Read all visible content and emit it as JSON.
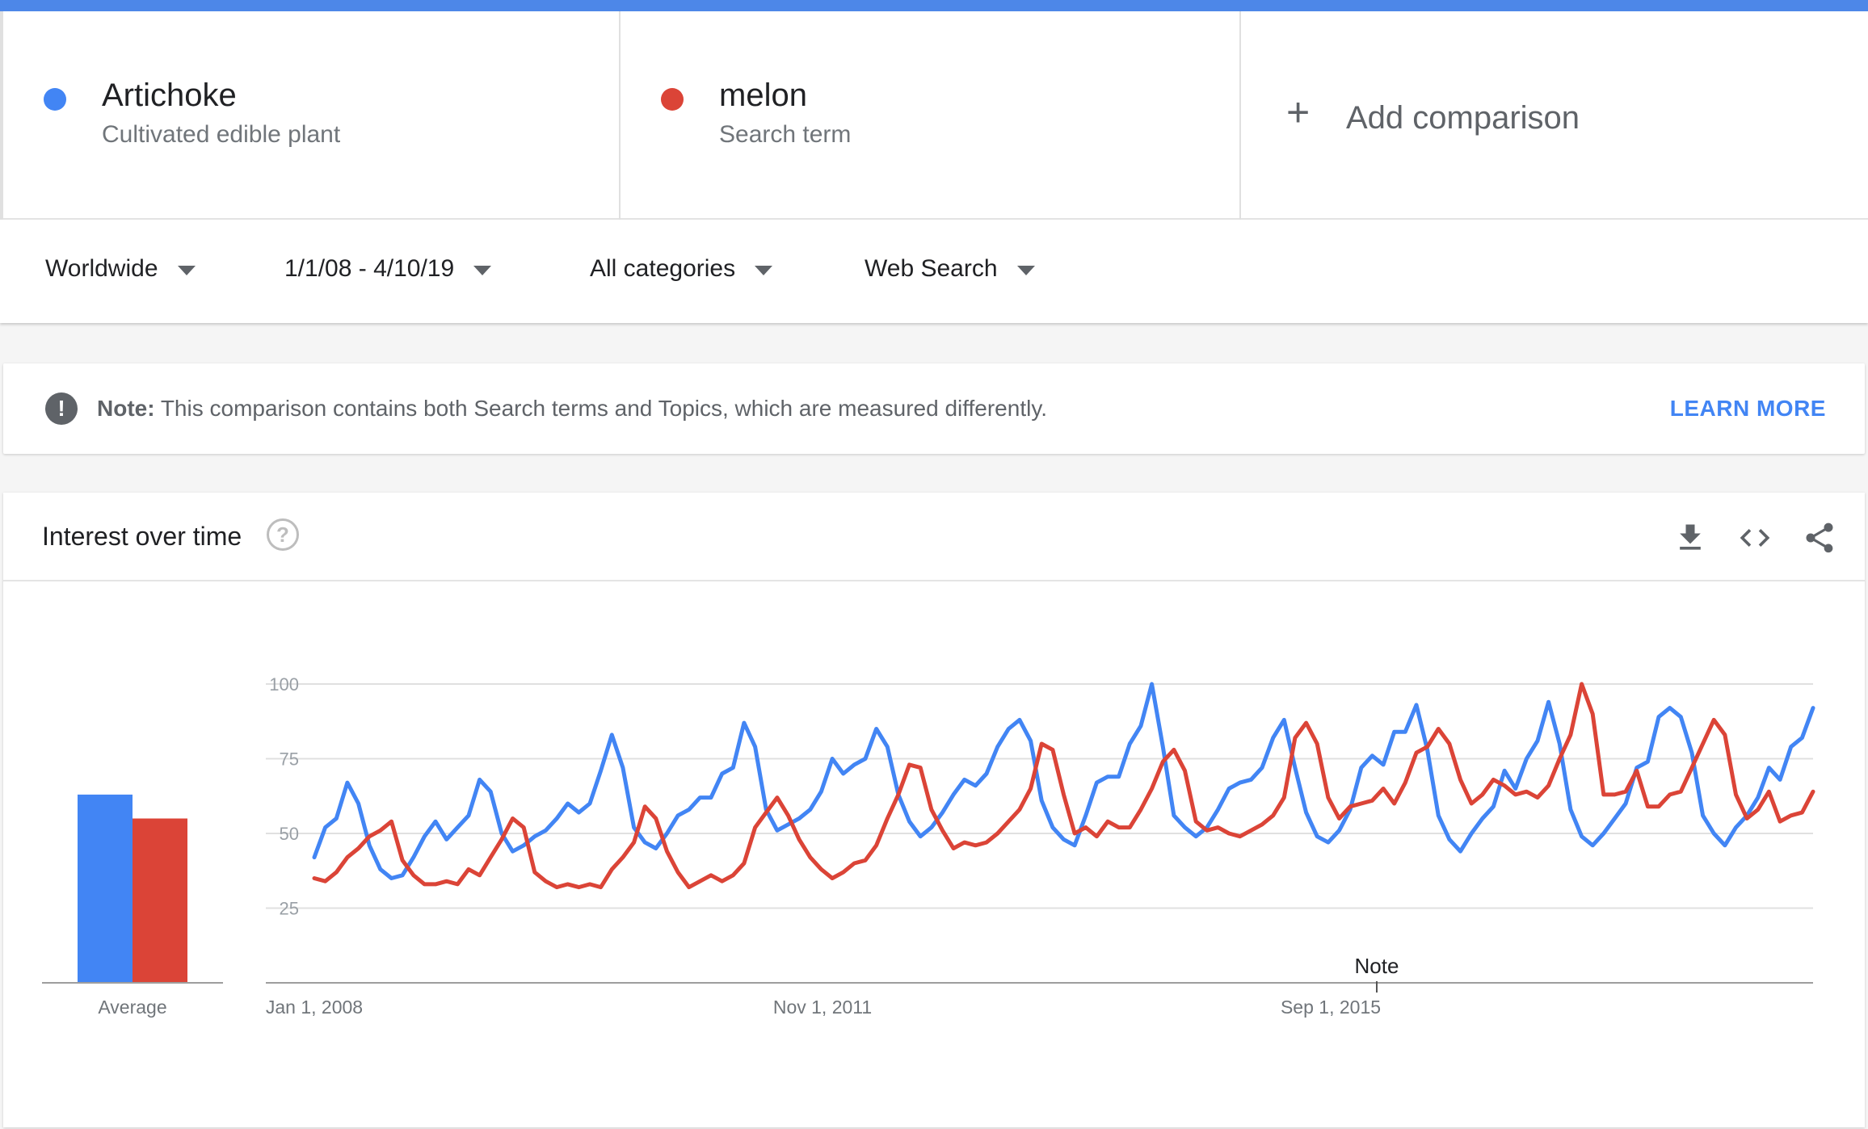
{
  "terms": [
    {
      "name": "Artichoke",
      "type": "Cultivated edible plant",
      "color": "#4285f4"
    },
    {
      "name": "melon",
      "type": "Search term",
      "color": "#db4437"
    }
  ],
  "add_comparison": {
    "label": "Add comparison",
    "icon": "plus-icon"
  },
  "filters": {
    "region": "Worldwide",
    "date_range": "1/1/08 - 4/10/19",
    "category": "All categories",
    "search_type": "Web Search"
  },
  "note": {
    "bold": "Note:",
    "text": " This comparison contains both Search terms and Topics, which are measured differently.",
    "learn_more": "LEARN MORE",
    "icon": "exclamation-icon"
  },
  "interest_over_time": {
    "title": "Interest over time",
    "icons": [
      "help-icon",
      "download-icon",
      "embed-code-icon",
      "share-icon"
    ]
  },
  "chart_data": {
    "type": "line",
    "title": "Interest over time",
    "y_ticks": [
      "25",
      "50",
      "75",
      "100"
    ],
    "ylim": [
      0,
      100
    ],
    "x_tick_labels": [
      "Jan 1, 2008",
      "Nov 1, 2011",
      "Sep 1, 2015"
    ],
    "annotation": "Note",
    "series": [
      {
        "name": "Artichoke",
        "color": "#4285f4",
        "average": 63,
        "values": [
          42,
          52,
          55,
          67,
          60,
          46,
          38,
          35,
          36,
          42,
          49,
          54,
          48,
          52,
          56,
          68,
          64,
          50,
          44,
          46,
          49,
          51,
          55,
          60,
          57,
          60,
          71,
          83,
          72,
          52,
          47,
          45,
          50,
          56,
          58,
          62,
          62,
          70,
          72,
          87,
          79,
          58,
          51,
          53,
          55,
          58,
          64,
          75,
          70,
          73,
          75,
          85,
          79,
          63,
          54,
          49,
          52,
          57,
          63,
          68,
          66,
          70,
          79,
          85,
          88,
          81,
          61,
          52,
          48,
          46,
          56,
          67,
          69,
          69,
          80,
          86,
          100,
          79,
          56,
          52,
          49,
          52,
          58,
          65,
          67,
          68,
          72,
          82,
          88,
          72,
          57,
          49,
          47,
          51,
          58,
          72,
          76,
          73,
          84,
          84,
          93,
          78,
          56,
          48,
          44,
          50,
          55,
          59,
          71,
          65,
          75,
          81,
          94,
          80,
          58,
          49,
          46,
          50,
          55,
          60,
          72,
          74,
          89,
          92,
          89,
          77,
          56,
          50,
          46,
          52,
          56,
          62,
          72,
          68,
          79,
          82,
          92
        ]
      },
      {
        "name": "melon",
        "color": "#db4437",
        "average": 55,
        "values": [
          35,
          34,
          37,
          42,
          45,
          49,
          51,
          54,
          41,
          36,
          33,
          33,
          34,
          33,
          38,
          36,
          42,
          48,
          55,
          52,
          37,
          34,
          32,
          33,
          32,
          33,
          32,
          38,
          42,
          47,
          59,
          55,
          44,
          37,
          32,
          34,
          36,
          34,
          36,
          40,
          52,
          57,
          62,
          56,
          48,
          42,
          38,
          35,
          37,
          40,
          41,
          46,
          55,
          63,
          73,
          72,
          58,
          51,
          45,
          47,
          46,
          47,
          50,
          54,
          58,
          65,
          80,
          78,
          63,
          50,
          52,
          49,
          54,
          52,
          52,
          58,
          65,
          74,
          78,
          71,
          54,
          51,
          52,
          50,
          49,
          51,
          53,
          56,
          62,
          82,
          87,
          80,
          62,
          55,
          59,
          60,
          61,
          65,
          60,
          67,
          77,
          79,
          85,
          80,
          68,
          60,
          63,
          68,
          66,
          63,
          64,
          62,
          66,
          75,
          83,
          100,
          90,
          63,
          63,
          64,
          71,
          59,
          59,
          63,
          64,
          72,
          80,
          88,
          83,
          63,
          55,
          58,
          64,
          54,
          56,
          57,
          64
        ]
      }
    ]
  }
}
